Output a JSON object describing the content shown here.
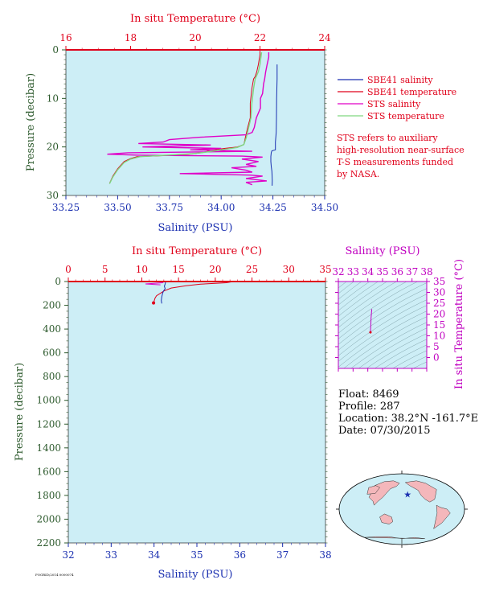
{
  "colors": {
    "plot_bg": "#cdeef6",
    "temp": "#e0001a",
    "sal": "#1a2fb0",
    "sts_sal": "#e000c8",
    "sts_temp": "#7fd67f",
    "pressure_axis": "#2d5a2d",
    "ts_axis": "#c000c0",
    "text": "#000000"
  },
  "chart_data": [
    {
      "id": "near-surface",
      "type": "line",
      "title": "",
      "top_axis_label": "In situ Temperature (°C)",
      "xlabel": "Salinity (PSU)",
      "ylabel": "Pressure (decibar)",
      "salinity_range": [
        33.25,
        34.5
      ],
      "salinity_ticks": [
        "33.25",
        "33.50",
        "33.75",
        "34.00",
        "34.25",
        "34.50"
      ],
      "temperature_range": [
        16,
        24
      ],
      "temperature_ticks": [
        "16",
        "18",
        "20",
        "22",
        "24"
      ],
      "pressure_range": [
        0,
        30
      ],
      "pressure_ticks": [
        "0",
        "10",
        "20",
        "30"
      ],
      "legend": {
        "position": "right",
        "entries": [
          {
            "name": "SBE41 salinity",
            "color": "#1a2fb0"
          },
          {
            "name": "SBE41 temperature",
            "color": "#e0001a"
          },
          {
            "name": "STS salinity",
            "color": "#e000c8"
          },
          {
            "name": "STS temperature",
            "color": "#7fd67f"
          }
        ]
      },
      "note": [
        "STS refers to auxiliary",
        "high-resolution near-surface",
        "T-S measurements funded",
        "by NASA."
      ],
      "series": [
        {
          "name": "SBE41 salinity",
          "axis": "salinity",
          "points": [
            [
              34.27,
              3
            ],
            [
              34.27,
              6
            ],
            [
              34.268,
              10
            ],
            [
              34.267,
              14
            ],
            [
              34.266,
              17
            ],
            [
              34.262,
              19
            ],
            [
              34.262,
              20.6
            ],
            [
              34.245,
              20.8
            ],
            [
              34.242,
              21.2
            ],
            [
              34.24,
              22
            ],
            [
              34.24,
              23
            ],
            [
              34.242,
              24
            ],
            [
              34.245,
              25
            ],
            [
              34.246,
              26
            ],
            [
              34.247,
              27
            ],
            [
              34.246,
              28
            ]
          ]
        },
        {
          "name": "SBE41 temperature",
          "axis": "temperature",
          "points": [
            [
              22.0,
              0.2
            ],
            [
              22.0,
              1
            ],
            [
              21.95,
              3
            ],
            [
              21.9,
              4.5
            ],
            [
              21.85,
              5.5
            ],
            [
              21.8,
              6
            ],
            [
              21.75,
              8
            ],
            [
              21.7,
              11
            ],
            [
              21.7,
              14
            ],
            [
              21.62,
              16
            ],
            [
              21.55,
              18
            ],
            [
              21.5,
              19.5
            ],
            [
              21.3,
              20
            ],
            [
              20.9,
              20.3
            ],
            [
              20.5,
              20.7
            ],
            [
              20.2,
              21.2
            ],
            [
              19.8,
              21.5
            ],
            [
              19.0,
              21.8
            ],
            [
              18.2,
              22
            ],
            [
              18.0,
              22.4
            ],
            [
              17.8,
              23
            ],
            [
              17.6,
              24.5
            ],
            [
              17.45,
              26
            ],
            [
              17.35,
              27.5
            ]
          ]
        },
        {
          "name": "STS salinity",
          "axis": "salinity",
          "points": [
            [
              34.23,
              0.5
            ],
            [
              34.23,
              1.5
            ],
            [
              34.222,
              3
            ],
            [
              34.215,
              4.5
            ],
            [
              34.21,
              6
            ],
            [
              34.205,
              7
            ],
            [
              34.2,
              9
            ],
            [
              34.19,
              10
            ],
            [
              34.19,
              12
            ],
            [
              34.17,
              14
            ],
            [
              34.16,
              16
            ],
            [
              34.15,
              17
            ],
            [
              34.12,
              17.5
            ],
            [
              33.9,
              18
            ],
            [
              33.75,
              18.5
            ],
            [
              33.72,
              19
            ],
            [
              33.6,
              19.3
            ],
            [
              33.95,
              19.6
            ],
            [
              33.62,
              20
            ],
            [
              34.0,
              20.3
            ],
            [
              33.85,
              20.6
            ],
            [
              34.15,
              20.9
            ],
            [
              33.55,
              21.2
            ],
            [
              33.45,
              21.5
            ],
            [
              33.6,
              21.7
            ],
            [
              34.1,
              21.9
            ],
            [
              34.2,
              22.1
            ],
            [
              34.1,
              22.5
            ],
            [
              34.18,
              23
            ],
            [
              34.12,
              23.6
            ],
            [
              34.17,
              24
            ],
            [
              34.05,
              24.3
            ],
            [
              34.12,
              24.8
            ],
            [
              34.15,
              25.2
            ],
            [
              33.8,
              25.5
            ],
            [
              34.14,
              25.8
            ],
            [
              34.2,
              26
            ],
            [
              34.12,
              26.5
            ],
            [
              34.22,
              27
            ],
            [
              34.12,
              27.3
            ],
            [
              34.15,
              27.8
            ]
          ]
        },
        {
          "name": "STS temperature",
          "axis": "temperature",
          "points": [
            [
              22.05,
              0.5
            ],
            [
              22.02,
              2
            ],
            [
              22.0,
              3
            ],
            [
              21.95,
              4.5
            ],
            [
              21.85,
              6
            ],
            [
              21.8,
              8
            ],
            [
              21.75,
              11
            ],
            [
              21.72,
              14
            ],
            [
              21.65,
              16
            ],
            [
              21.58,
              18
            ],
            [
              21.5,
              19.5
            ],
            [
              21.3,
              20.1
            ],
            [
              20.9,
              20.5
            ],
            [
              20.6,
              20.8
            ],
            [
              20.3,
              21.1
            ],
            [
              19.9,
              21.4
            ],
            [
              19.1,
              21.7
            ],
            [
              18.3,
              22
            ],
            [
              18.0,
              22.5
            ],
            [
              17.8,
              23.2
            ],
            [
              17.6,
              24.7
            ],
            [
              17.45,
              26.2
            ],
            [
              17.35,
              27.6
            ]
          ]
        }
      ]
    },
    {
      "id": "full-profile",
      "type": "line",
      "title": "",
      "top_axis_label": "In situ Temperature (°C)",
      "xlabel": "Salinity (PSU)",
      "ylabel": "Pressure (decibar)",
      "salinity_range": [
        32,
        38
      ],
      "salinity_ticks": [
        "32",
        "33",
        "34",
        "35",
        "36",
        "37",
        "38"
      ],
      "temperature_range": [
        0,
        35
      ],
      "temperature_ticks": [
        "0",
        "5",
        "10",
        "15",
        "20",
        "25",
        "30",
        "35"
      ],
      "pressure_range": [
        0,
        2200
      ],
      "pressure_ticks": [
        "0",
        "200",
        "400",
        "600",
        "800",
        "1000",
        "1200",
        "1400",
        "1600",
        "1800",
        "2000",
        "2200"
      ],
      "series": [
        {
          "name": "temperature",
          "axis": "temperature",
          "points": [
            [
              22.3,
              2
            ],
            [
              22.0,
              5
            ],
            [
              21.5,
              10
            ],
            [
              20.0,
              15
            ],
            [
              18.0,
              22
            ],
            [
              16.0,
              35
            ],
            [
              14.0,
              55
            ],
            [
              13.0,
              80
            ],
            [
              12.5,
              100
            ],
            [
              12.0,
              120
            ],
            [
              11.8,
              140
            ],
            [
              11.7,
              160
            ],
            [
              11.6,
              180
            ]
          ]
        },
        {
          "name": "salinity",
          "axis": "salinity",
          "points": [
            [
              34.27,
              3
            ],
            [
              34.26,
              20
            ],
            [
              34.24,
              40
            ],
            [
              34.26,
              60
            ],
            [
              34.22,
              80
            ],
            [
              34.2,
              100
            ],
            [
              34.18,
              130
            ],
            [
              34.17,
              160
            ],
            [
              34.18,
              185
            ]
          ]
        },
        {
          "name": "STS salinity",
          "axis": "salinity",
          "points": [
            [
              34.23,
              0
            ],
            [
              34.2,
              10
            ],
            [
              33.8,
              20
            ],
            [
              34.15,
              28
            ]
          ]
        }
      ]
    },
    {
      "id": "ts-diagram",
      "type": "line",
      "top_axis_label": "Salinity (PSU)",
      "ylabel": "In situ Temperature (°C)",
      "salinity_range": [
        32,
        38
      ],
      "salinity_ticks": [
        "32",
        "33",
        "34",
        "35",
        "36",
        "37",
        "38"
      ],
      "temperature_range": [
        -5,
        35
      ],
      "temperature_ticks": [
        "0",
        "5",
        "10",
        "15",
        "20",
        "25",
        "30",
        "35"
      ],
      "series": [
        {
          "name": "profile",
          "axis": "ts",
          "points": [
            [
              34.27,
              22.3
            ],
            [
              34.26,
              21.5
            ],
            [
              34.24,
              20.0
            ],
            [
              34.22,
              18.0
            ],
            [
              34.21,
              16.0
            ],
            [
              34.2,
              14.0
            ],
            [
              34.19,
              13.0
            ],
            [
              34.18,
              12.0
            ],
            [
              34.18,
              11.6
            ]
          ]
        }
      ]
    }
  ],
  "info": {
    "float": "Float:  8469",
    "profile": "Profile:  287",
    "location": "Location:  38.2°N  -161.7°E",
    "date": "Date:  07/30/2015"
  },
  "map": {
    "marker_lon": -161.7,
    "marker_lat": 38.2,
    "marker_color": "#1a2fb0",
    "ocean_color": "#cdeef6",
    "land_color": "#f4b7bb"
  },
  "footer": "POGRID/2014 0000074"
}
